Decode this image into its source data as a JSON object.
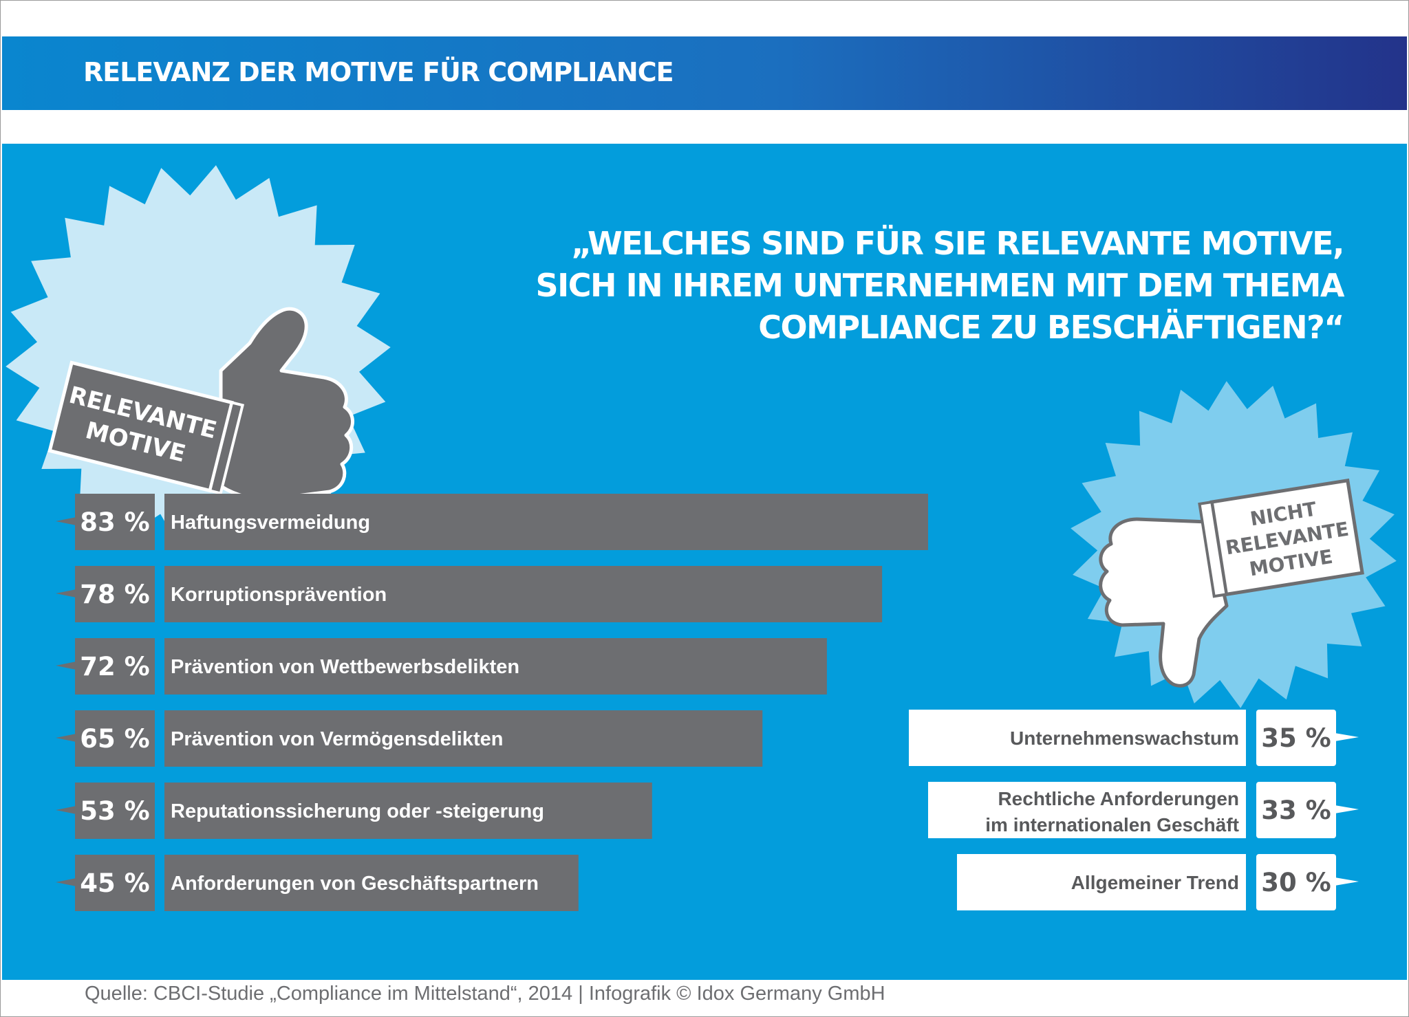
{
  "header": {
    "title": "RELEVANZ DER MOTIVE FÜR COMPLIANCE"
  },
  "question": {
    "lines": [
      "„WELCHES SIND FÜR SIE RELEVANTE MOTIVE,",
      "SICH IN IHREM UNTERNEHMEN MIT DEM THEMA",
      "COMPLIANCE ZU BESCHÄFTIGEN?“"
    ]
  },
  "badges": {
    "relevant": {
      "line1": "RELEVANTE",
      "line2": "MOTIVE",
      "icon": "thumbs-up-icon"
    },
    "not_relevant": {
      "line1": "NICHT",
      "line2": "RELEVANTE",
      "line3": "MOTIVE",
      "icon": "thumbs-down-icon"
    }
  },
  "chart_data": [
    {
      "type": "bar",
      "orientation": "horizontal",
      "group": "relevante Motive",
      "unit": "%",
      "categories": [
        "Haftungsvermeidung",
        "Korruptionsprävention",
        "Prävention von Wettbewerbsdelikten",
        "Prävention von Vermögensdelikten",
        "Reputationssicherung oder -steigerung",
        "Anforderungen von Geschäftspartnern"
      ],
      "values": [
        83,
        78,
        72,
        65,
        53,
        45
      ],
      "value_labels": [
        "83 %",
        "78 %",
        "72 %",
        "65 %",
        "53 %",
        "45 %"
      ],
      "colors": {
        "bar": "#6d6e71",
        "background": "#039ddc"
      }
    },
    {
      "type": "bar",
      "orientation": "horizontal",
      "group": "nicht relevante Motive",
      "unit": "%",
      "categories": [
        [
          "Unternehmenswachstum"
        ],
        [
          "Rechtliche Anforderungen",
          "im internationalen Geschäft"
        ],
        [
          "Allgemeiner Trend"
        ]
      ],
      "values": [
        35,
        33,
        30
      ],
      "value_labels": [
        "35 %",
        "33 %",
        "30 %"
      ],
      "colors": {
        "bar": "#ffffff",
        "text": "#58595b"
      }
    }
  ],
  "source": "Quelle: CBCI-Studie „Compliance im Mittelstand“, 2014 | Infografik © Idox Germany GmbH"
}
